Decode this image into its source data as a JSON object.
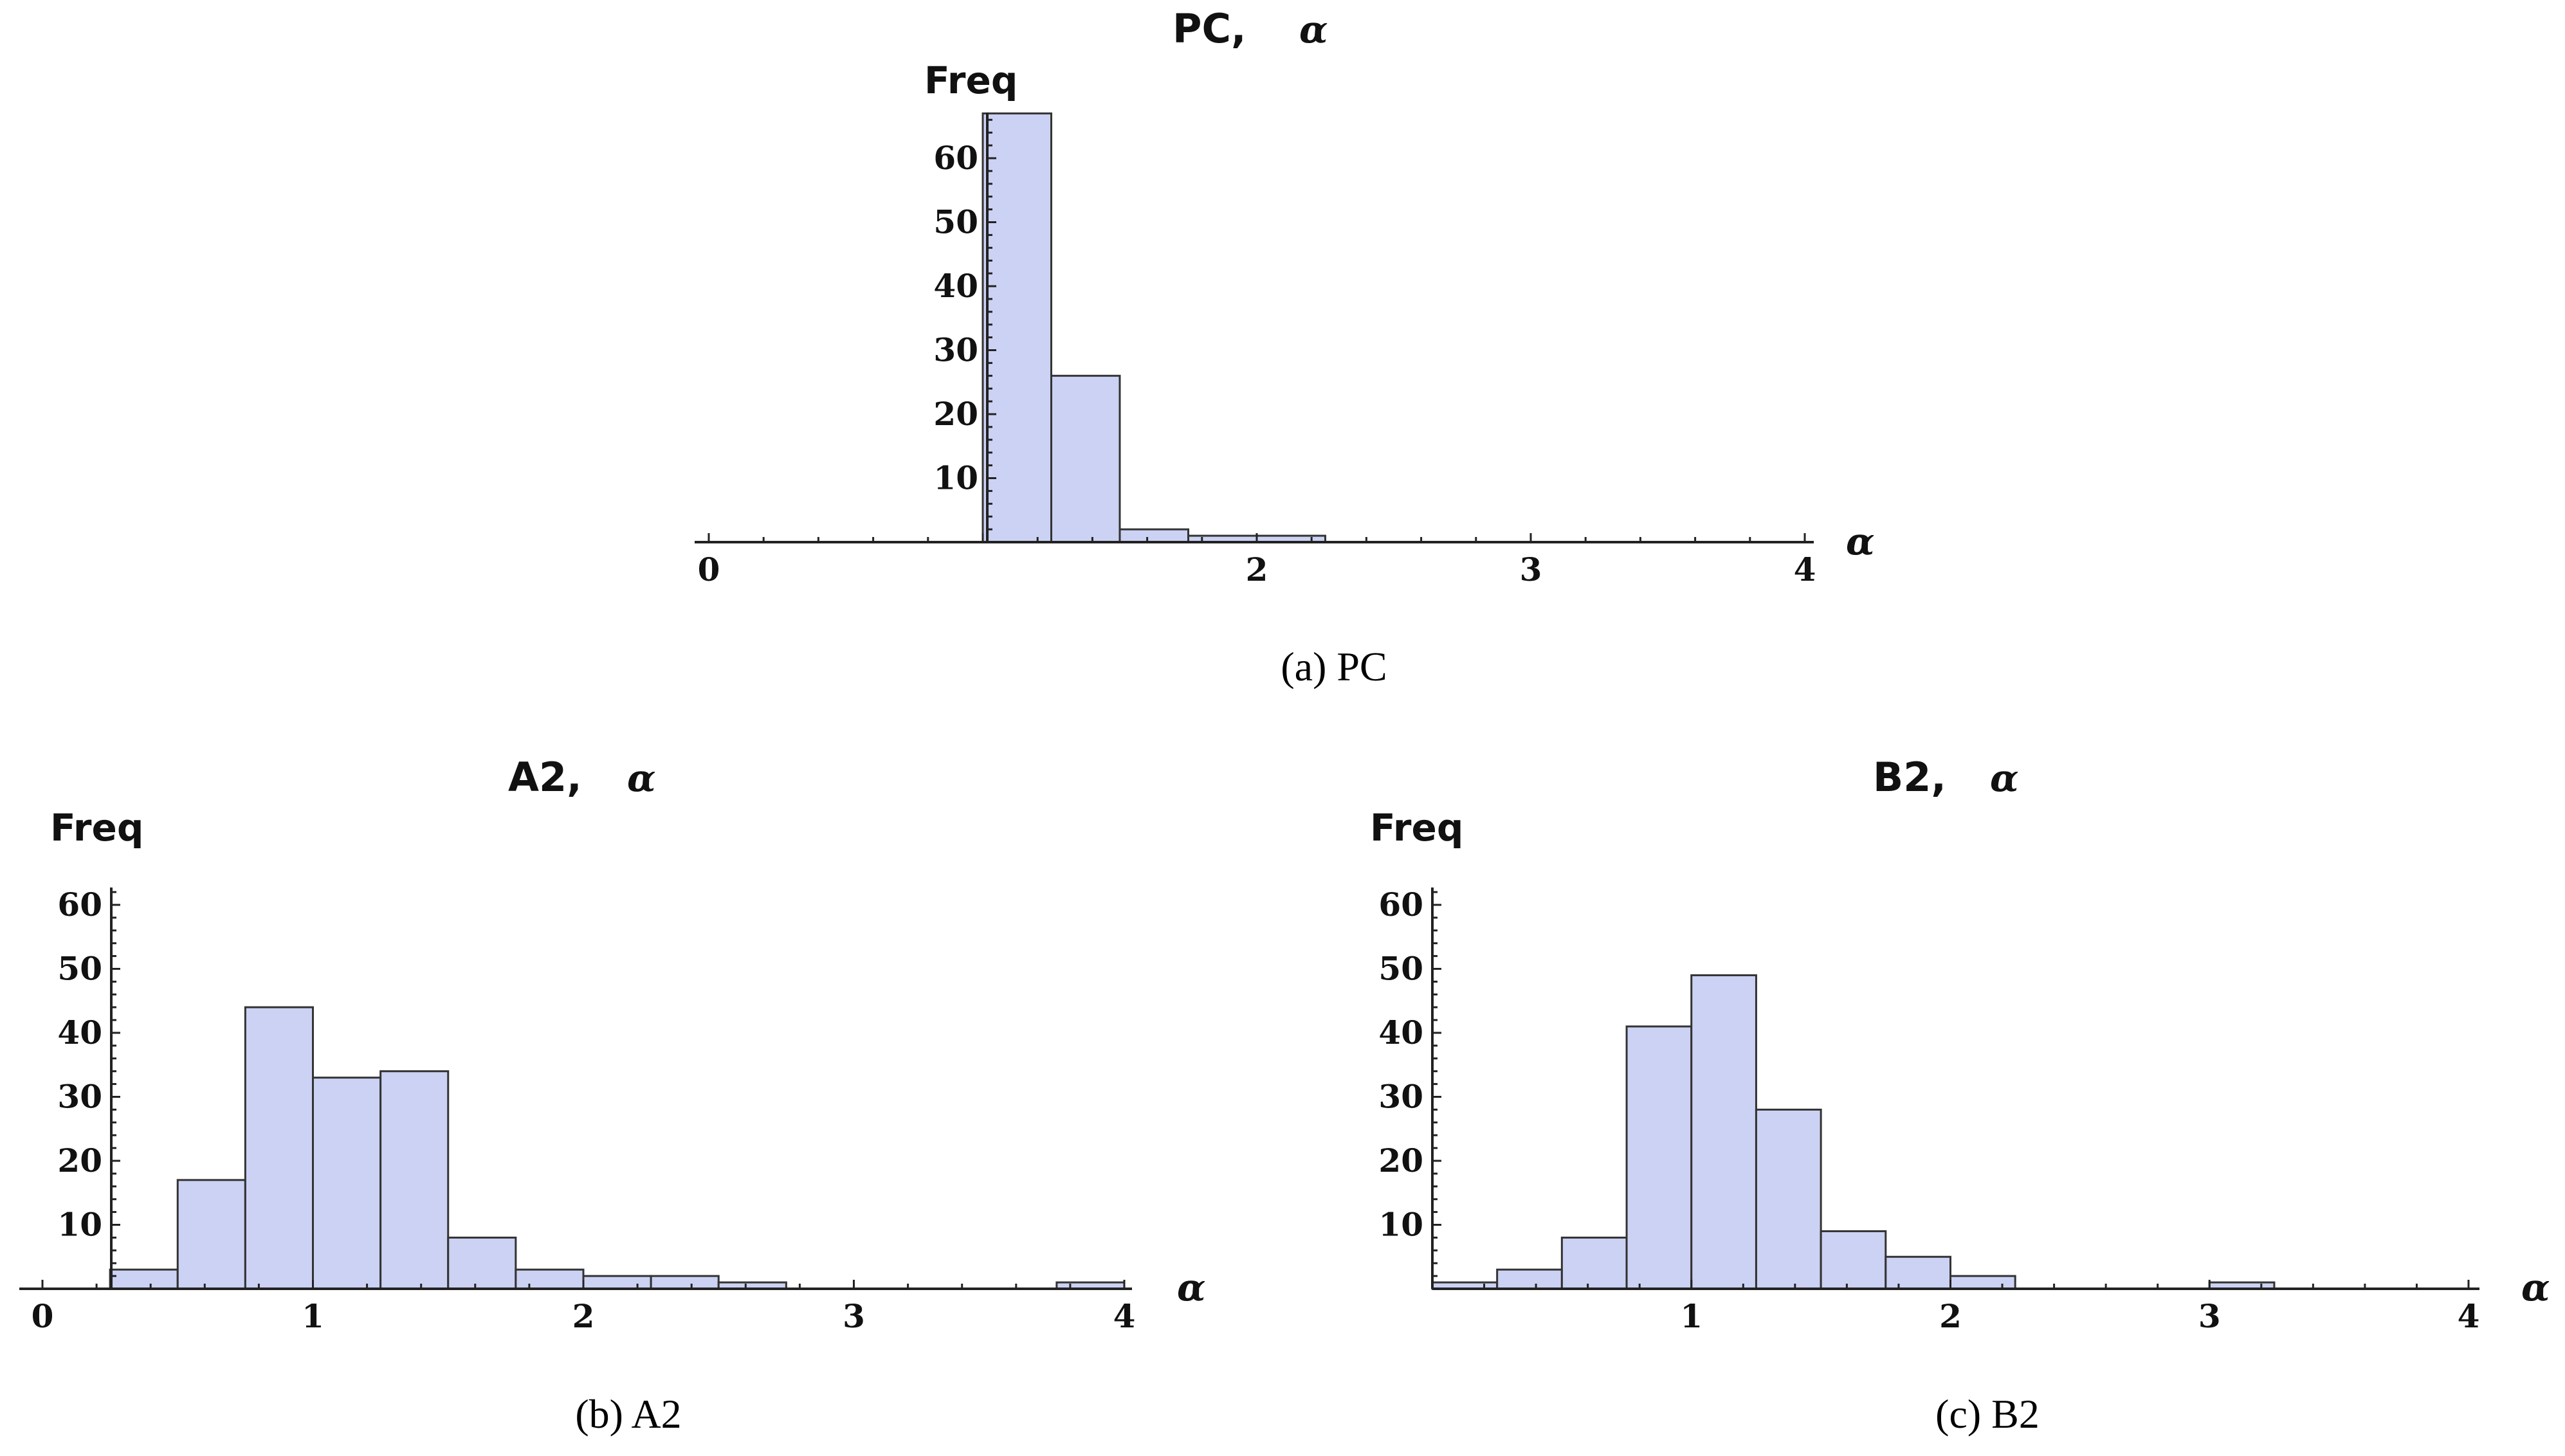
{
  "chart_data": [
    {
      "type": "bar",
      "panel": "a",
      "title_main": "PC,",
      "title_symbol": "α",
      "ylabel": "Freq",
      "xlabel": "α",
      "caption": "(a)  PC",
      "xlim": [
        0,
        4
      ],
      "ylim": [
        0,
        67
      ],
      "x_ticks": [
        "0",
        "2",
        "3",
        "4"
      ],
      "y_ticks": [
        "10",
        "20",
        "30",
        "40",
        "50",
        "60"
      ],
      "bin_width": 0.25,
      "bins": [
        {
          "start": 1.0,
          "value": 67
        },
        {
          "start": 1.25,
          "value": 26
        },
        {
          "start": 1.5,
          "value": 2
        },
        {
          "start": 1.75,
          "value": 1
        },
        {
          "start": 2.0,
          "value": 1
        }
      ]
    },
    {
      "type": "bar",
      "panel": "b",
      "title_main": "A2,",
      "title_symbol": "α",
      "ylabel": "Freq",
      "xlabel": "α",
      "caption": "(b)  A2",
      "xlim": [
        0,
        4
      ],
      "ylim": [
        0,
        67
      ],
      "x_ticks": [
        "0",
        "1",
        "2",
        "3",
        "4"
      ],
      "y_ticks": [
        "10",
        "20",
        "30",
        "40",
        "50",
        "60"
      ],
      "bin_width": 0.25,
      "bins": [
        {
          "start": 0.25,
          "value": 3
        },
        {
          "start": 0.5,
          "value": 17
        },
        {
          "start": 0.75,
          "value": 44
        },
        {
          "start": 1.0,
          "value": 33
        },
        {
          "start": 1.25,
          "value": 34
        },
        {
          "start": 1.5,
          "value": 8
        },
        {
          "start": 1.75,
          "value": 3
        },
        {
          "start": 2.0,
          "value": 2
        },
        {
          "start": 2.25,
          "value": 2
        },
        {
          "start": 2.5,
          "value": 1
        },
        {
          "start": 3.75,
          "value": 1
        }
      ]
    },
    {
      "type": "bar",
      "panel": "c",
      "title_main": "B2,",
      "title_symbol": "α",
      "ylabel": "Freq",
      "xlabel": "α",
      "caption": "(c)  B2",
      "xlim": [
        0,
        4
      ],
      "ylim": [
        0,
        67
      ],
      "x_ticks": [
        "1",
        "2",
        "3",
        "4"
      ],
      "y_ticks": [
        "10",
        "20",
        "30",
        "40",
        "50",
        "60"
      ],
      "bin_width": 0.25,
      "bins": [
        {
          "start": 0.0,
          "value": 1
        },
        {
          "start": 0.25,
          "value": 3
        },
        {
          "start": 0.5,
          "value": 8
        },
        {
          "start": 0.75,
          "value": 41
        },
        {
          "start": 1.0,
          "value": 49
        },
        {
          "start": 1.25,
          "value": 28
        },
        {
          "start": 1.5,
          "value": 9
        },
        {
          "start": 1.75,
          "value": 5
        },
        {
          "start": 2.0,
          "value": 2
        },
        {
          "start": 3.0,
          "value": 1
        }
      ]
    }
  ]
}
